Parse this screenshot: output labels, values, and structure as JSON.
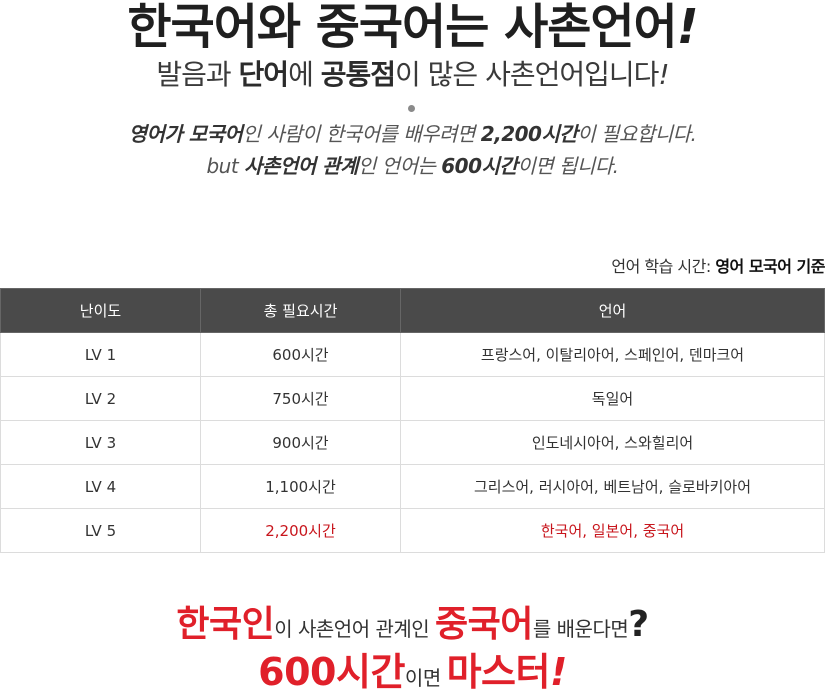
{
  "headline": {
    "title": "한국어와 중국어는 사촌언어",
    "title_bang": "!",
    "subtitle_a": "발음과 ",
    "subtitle_b": "단어",
    "subtitle_c": "에 ",
    "subtitle_d": "공통점",
    "subtitle_e": "이 많은 사촌언어입니다",
    "subtitle_bang": "!"
  },
  "description": {
    "line1_a": "영어가 모국어",
    "line1_b": "인 사람이 한국어를 배우려면 ",
    "line1_c": "2,200시간",
    "line1_d": "이 필요합니다.",
    "line2_a": "but ",
    "line2_b": "사촌언어 관계",
    "line2_c": "인 언어는 ",
    "line2_d": "600시간",
    "line2_e": "이면 됩니다."
  },
  "note": {
    "label": "언어 학습 시간: ",
    "value": "영어 모국어 기준"
  },
  "table": {
    "headers": [
      "난이도",
      "총 필요시간",
      "언어"
    ],
    "rows": [
      {
        "level": "LV 1",
        "hours": "600시간",
        "langs": "프랑스어, 이탈리아어, 스페인어, 덴마크어"
      },
      {
        "level": "LV 2",
        "hours": "750시간",
        "langs": "독일어"
      },
      {
        "level": "LV 3",
        "hours": "900시간",
        "langs": "인도네시아어, 스와힐리어"
      },
      {
        "level": "LV 4",
        "hours": "1,100시간",
        "langs": "그리스어, 러시아어, 베트남어, 슬로바키아어"
      },
      {
        "level": "LV 5",
        "hours": "2,200시간",
        "langs": "한국어, 일본어, 중국어"
      }
    ]
  },
  "colors": {
    "accent_red": "#e0202a",
    "highlight_red": "#c8161d",
    "header_bg": "#4a4a4a"
  },
  "bottom": {
    "a": "한국인",
    "b": "이 사촌언어 관계인 ",
    "c": "중국어",
    "d": "를 배운다면",
    "q": "?",
    "e": "600시간",
    "f": "이면 ",
    "g": "마스터",
    "bang": "!"
  }
}
